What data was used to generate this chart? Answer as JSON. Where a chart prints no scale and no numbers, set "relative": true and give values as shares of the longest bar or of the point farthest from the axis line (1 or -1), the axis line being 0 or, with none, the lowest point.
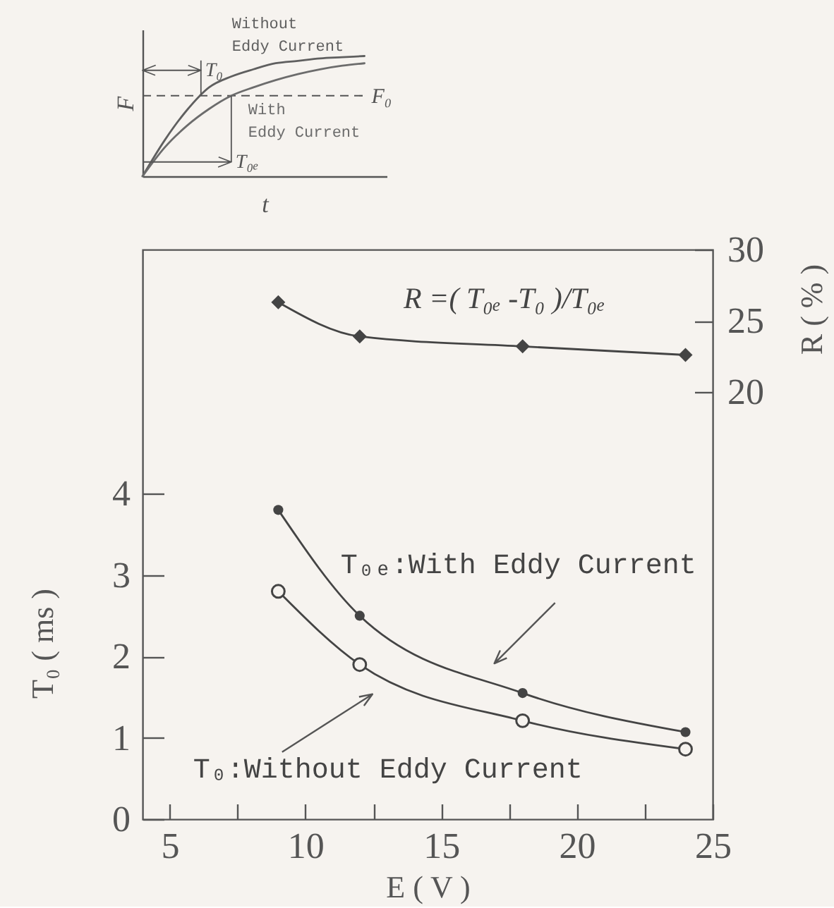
{
  "chart_data": [
    {
      "type": "line",
      "relative": true,
      "xlabel": "t",
      "ylabel": "F",
      "categories": [
        null,
        null,
        null,
        null,
        null,
        null,
        null,
        null,
        null,
        null,
        null
      ],
      "series": [
        {
          "name": "Without Eddy Current",
          "color": "#5f5f5f",
          "values": [
            0,
            0.3,
            0.55,
            0.74,
            0.83,
            0.89,
            0.94,
            0.96,
            0.98,
            0.99,
            1.0
          ]
        },
        {
          "name": "With Eddy Current",
          "color": "#6c6c6c",
          "values": [
            0,
            0.24,
            0.42,
            0.56,
            0.67,
            0.74,
            0.8,
            0.85,
            0.89,
            0.92,
            0.94
          ]
        }
      ],
      "ref_lines": [
        {
          "axis": "y",
          "value": 0.67,
          "label": "F₀",
          "line_style": "dashed"
        }
      ],
      "annotations": [
        "T₀",
        "T₀ₑ"
      ]
    },
    {
      "type": "line",
      "xlabel": "E ( V )",
      "ylabel": "T₀ ( ms )",
      "y2label": "R ( % )",
      "x": [
        9,
        12,
        18,
        24
      ],
      "series": [
        {
          "name": "R =( T₀ₑ -T₀ )/T₀ₑ",
          "color": "#444444",
          "axis": "y2",
          "marker": "diamond",
          "values": [
            26.3,
            23.9,
            23.2,
            22.6
          ]
        },
        {
          "name": "T₀ₑ:With Eddy Current",
          "color": "#444444",
          "marker": "circle",
          "values": [
            3.8,
            2.5,
            1.55,
            1.07
          ]
        },
        {
          "name": "T₀:Without Eddy Current",
          "color": "#444444",
          "marker": "circle",
          "values": [
            2.8,
            1.9,
            1.21,
            0.86
          ]
        }
      ],
      "xlim": [
        4,
        25
      ],
      "xticks": [
        5,
        {
          "value": 7.5,
          "label": null
        },
        10,
        {
          "value": 12.5,
          "label": null
        },
        15,
        {
          "value": 17.5,
          "label": null
        },
        20,
        {
          "value": 22.5,
          "label": null
        },
        25
      ],
      "ylim": [
        0,
        7
      ],
      "yticks": [
        0,
        1,
        2,
        3,
        4
      ],
      "y2lim": [
        -10,
        30
      ],
      "y2ticks": [
        20,
        25,
        30
      ]
    }
  ]
}
